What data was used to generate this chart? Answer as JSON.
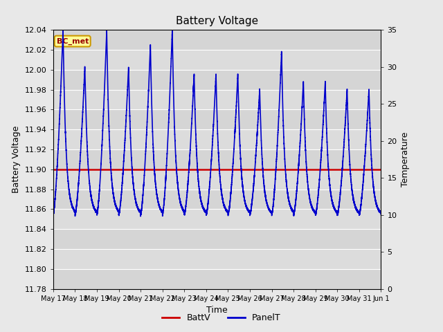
{
  "title": "Battery Voltage",
  "xlabel": "Time",
  "ylabel_left": "Battery Voltage",
  "ylabel_right": "Temperature",
  "ylim_left": [
    11.78,
    12.04
  ],
  "ylim_right": [
    0,
    35
  ],
  "yticks_left": [
    11.78,
    11.8,
    11.82,
    11.84,
    11.86,
    11.88,
    11.9,
    11.92,
    11.94,
    11.96,
    11.98,
    12.0,
    12.02,
    12.04
  ],
  "yticks_right": [
    0,
    5,
    10,
    15,
    20,
    25,
    30,
    35
  ],
  "batt_v": 11.9,
  "batt_color": "#cc0000",
  "panel_color": "#0000cc",
  "bg_color": "#e8e8e8",
  "plot_bg_color": "#dcdcdc",
  "annotation_text": "BC_met",
  "annotation_bg": "#ffff99",
  "annotation_border": "#cc9900",
  "annotation_text_color": "#990000",
  "legend_labels": [
    "BattV",
    "PanelT"
  ],
  "xtick_labels": [
    "May 17",
    "May 18",
    "May 19",
    "May 20",
    "May 21",
    "May 22",
    "May 23",
    "May 24",
    "May 25",
    "May 26",
    "May 27",
    "May 28",
    "May 29",
    "May 30",
    "May 31",
    "Jun 1"
  ],
  "title_fontsize": 11,
  "axis_fontsize": 9,
  "tick_fontsize": 8,
  "grid_color": "#ffffff",
  "alt_band_color": "#d0d0d0"
}
